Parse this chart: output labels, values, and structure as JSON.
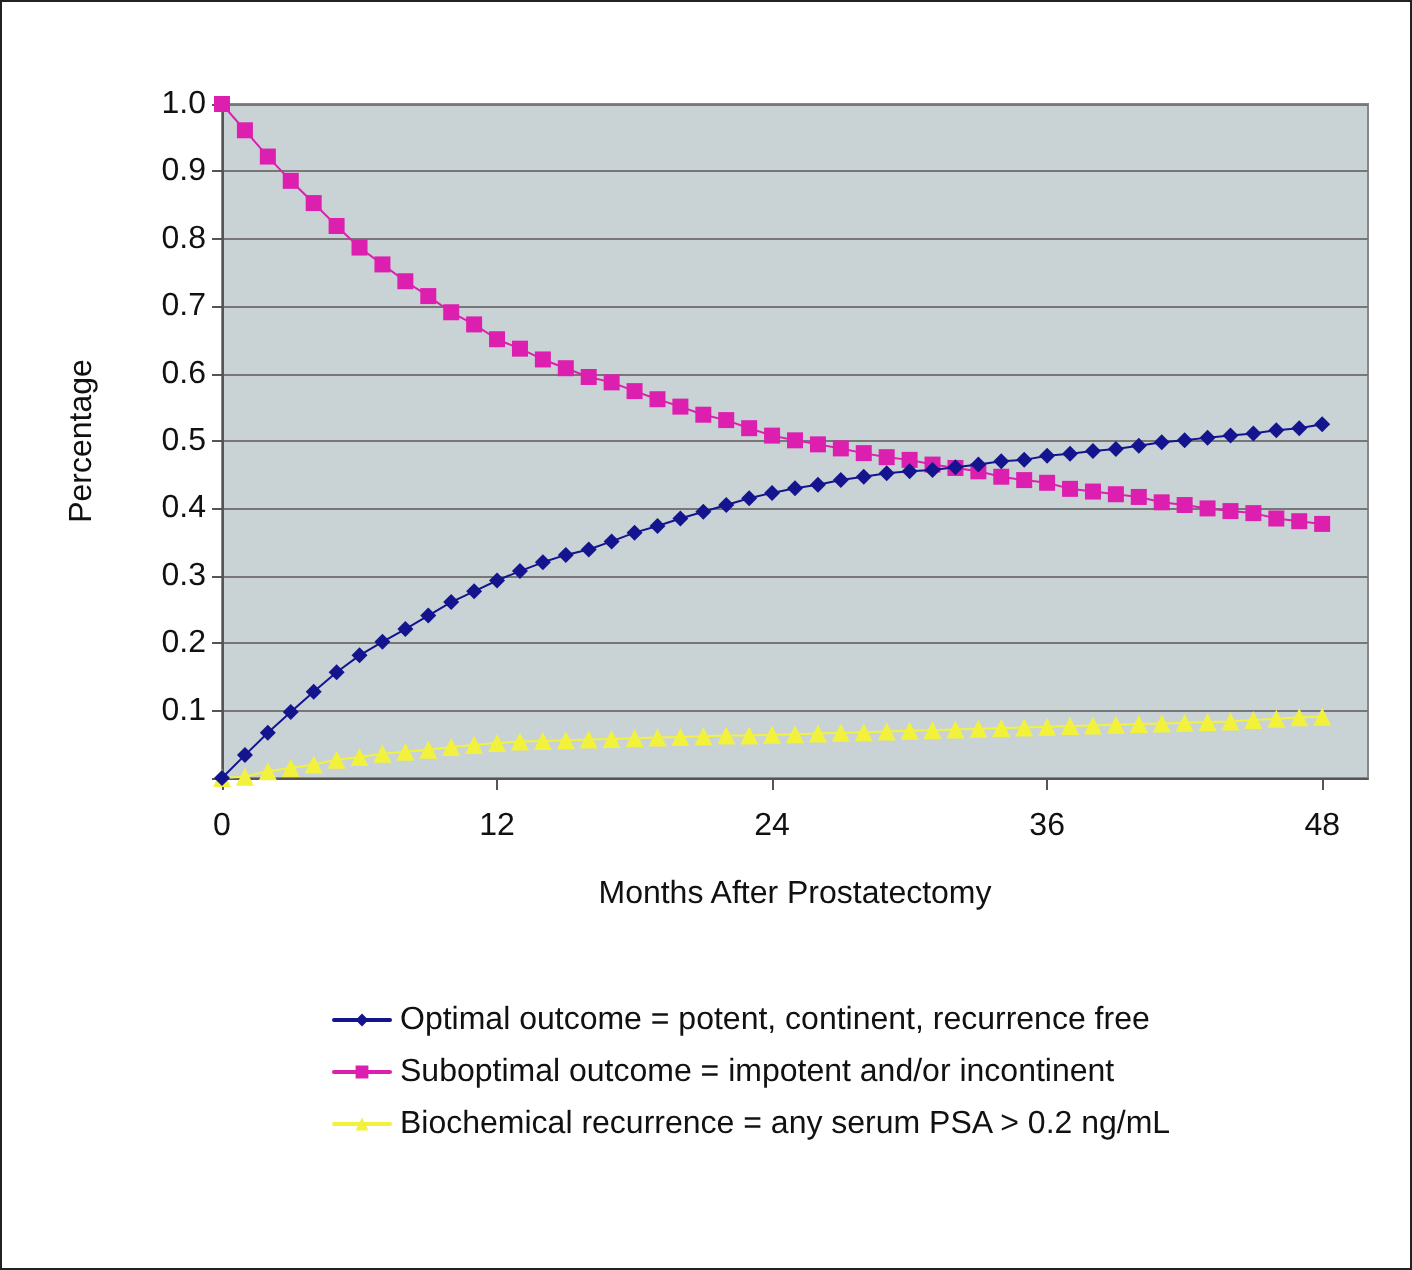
{
  "chart_data": {
    "type": "line",
    "xlabel": "Months After Prostatectomy",
    "ylabel": "Percentage",
    "x": [
      0,
      1,
      2,
      3,
      4,
      5,
      6,
      7,
      8,
      9,
      10,
      11,
      12,
      13,
      14,
      15,
      16,
      17,
      18,
      19,
      20,
      21,
      22,
      23,
      24,
      25,
      26,
      27,
      28,
      29,
      30,
      31,
      32,
      33,
      34,
      35,
      36,
      37,
      38,
      39,
      40,
      41,
      42,
      43,
      44,
      45,
      46,
      47,
      48
    ],
    "xlim": [
      0,
      50
    ],
    "xticks": [
      0,
      12,
      24,
      36,
      48
    ],
    "ylim": [
      0,
      1
    ],
    "yticks": [
      {
        "value": 0,
        "label": null
      },
      0.1,
      0.2,
      0.3,
      0.4,
      0.5,
      0.6,
      0.7,
      0.8,
      0.9,
      {
        "value": 1,
        "label": "1.0"
      }
    ],
    "grid": "y",
    "legend": "bottom",
    "line_style": "solid",
    "series": [
      {
        "name": "Optimal outcome = potent, continent, recurrence free",
        "color": "#14148f",
        "marker": "diamond",
        "values": [
          0,
          0.034,
          0.067,
          0.098,
          0.128,
          0.157,
          0.182,
          0.202,
          0.221,
          0.241,
          0.261,
          0.277,
          0.293,
          0.307,
          0.32,
          0.331,
          0.339,
          0.351,
          0.364,
          0.374,
          0.385,
          0.395,
          0.405,
          0.415,
          0.423,
          0.43,
          0.435,
          0.442,
          0.447,
          0.452,
          0.455,
          0.457,
          0.461,
          0.465,
          0.47,
          0.472,
          0.478,
          0.481,
          0.485,
          0.488,
          0.493,
          0.498,
          0.501,
          0.505,
          0.508,
          0.511,
          0.516,
          0.519,
          0.525
        ]
      },
      {
        "name": "Suboptimal outcome = impotent and/or incontinent",
        "color": "#dc1fae",
        "marker": "square",
        "values": [
          1,
          0.961,
          0.922,
          0.886,
          0.853,
          0.819,
          0.787,
          0.762,
          0.737,
          0.715,
          0.691,
          0.673,
          0.651,
          0.637,
          0.621,
          0.608,
          0.595,
          0.587,
          0.574,
          0.562,
          0.551,
          0.539,
          0.531,
          0.519,
          0.508,
          0.501,
          0.495,
          0.489,
          0.482,
          0.476,
          0.472,
          0.465,
          0.46,
          0.455,
          0.447,
          0.442,
          0.438,
          0.429,
          0.425,
          0.421,
          0.417,
          0.409,
          0.405,
          0.4,
          0.396,
          0.393,
          0.385,
          0.381,
          0.377
        ]
      },
      {
        "name": "Biochemical recurrence = any serum PSA > 0.2 ng/mL",
        "color": "#f2f23c",
        "marker": "triangle",
        "values": [
          0,
          0.002,
          0.01,
          0.015,
          0.02,
          0.027,
          0.031,
          0.036,
          0.039,
          0.042,
          0.046,
          0.049,
          0.052,
          0.054,
          0.055,
          0.056,
          0.057,
          0.058,
          0.059,
          0.06,
          0.061,
          0.062,
          0.063,
          0.063,
          0.064,
          0.065,
          0.066,
          0.067,
          0.068,
          0.069,
          0.07,
          0.071,
          0.072,
          0.073,
          0.074,
          0.075,
          0.076,
          0.077,
          0.078,
          0.079,
          0.08,
          0.081,
          0.082,
          0.083,
          0.084,
          0.086,
          0.088,
          0.09,
          0.091
        ]
      }
    ]
  }
}
